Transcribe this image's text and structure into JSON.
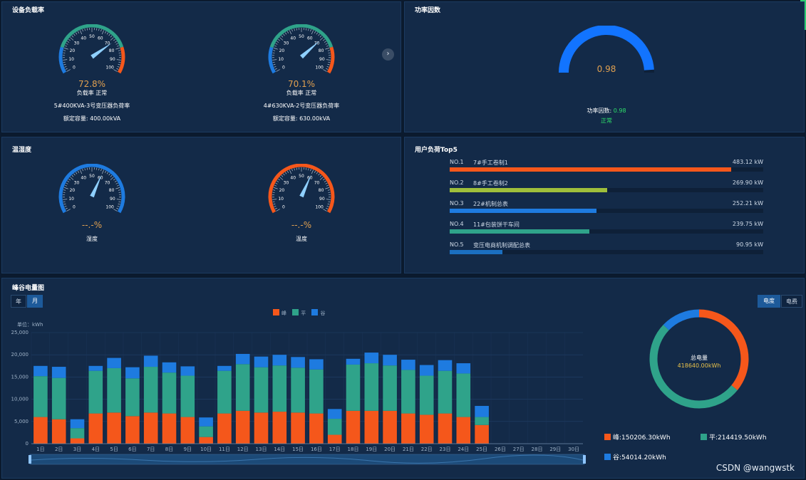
{
  "panels": {
    "load_rate": {
      "title": "设备负载率"
    },
    "power_factor": {
      "title": "功率因数"
    },
    "temp_humidity": {
      "title": "温湿度"
    },
    "top5": {
      "title": "用户负荷Top5"
    },
    "peak_valley": {
      "title": "峰谷电量图"
    }
  },
  "load_gauges": [
    {
      "value_text": "72.8%",
      "value": 72.8,
      "status": "负载率 正常",
      "name": "5#400KVA-3号变压器负荷率",
      "capacity": "额定容量: 400.00kVA"
    },
    {
      "value_text": "70.1%",
      "value": 70.1,
      "status": "负载率 正常",
      "name": "4#630KVA-2号变压器负荷率",
      "capacity": "额定容量: 630.00kVA"
    }
  ],
  "gauge_ticks": [
    "0",
    "10",
    "20",
    "30",
    "40",
    "50",
    "60",
    "70",
    "80",
    "90",
    "100"
  ],
  "power_factor": {
    "value_text": "0.98",
    "label": "功率因数: ",
    "value": "0.98",
    "status": "正常",
    "level": 0.98
  },
  "th_gauges": [
    {
      "value_text": "--.-%",
      "value": 60,
      "label": "湿度",
      "color": "#1e7be0"
    },
    {
      "value_text": "--.-%",
      "value": 60,
      "label": "温度",
      "color": "#f5571b"
    }
  ],
  "top5": [
    {
      "no": "NO.1",
      "name": "7#手工卷制1",
      "value": "483.12 kW",
      "level": 483.12,
      "color": "#f5571b"
    },
    {
      "no": "NO.2",
      "name": "8#手工卷制2",
      "value": "269.90 kW",
      "level": 269.9,
      "color": "#9fbf3b"
    },
    {
      "no": "NO.3",
      "name": "22#机制总表",
      "value": "252.21 kW",
      "level": 252.21,
      "color": "#1e7be0"
    },
    {
      "no": "NO.4",
      "name": "11#包装饼干车间",
      "value": "239.75 kW",
      "level": 239.75,
      "color": "#2fa38a"
    },
    {
      "no": "NO.5",
      "name": "变压电商机制调配总表",
      "value": "90.95 kW",
      "level": 90.95,
      "color": "#1b6fc0"
    }
  ],
  "peak_valley": {
    "btn_year": "年",
    "btn_month": "月",
    "btn_energy": "电度",
    "btn_cost": "电费",
    "unit_label": "单位：kWh",
    "legend": [
      "峰",
      "平",
      "谷"
    ],
    "colors": {
      "peak": "#f5571b",
      "flat": "#2fa38a",
      "valley": "#1e7be0"
    },
    "donut": {
      "title": "总电量",
      "value": "418640.00kWh",
      "peak_frac": 0.359,
      "flat_frac": 0.512,
      "valley_frac": 0.129
    },
    "donut_legend": [
      "峰:150206.30kWh",
      "平:214419.50kWh",
      "谷:54014.20kWh"
    ]
  },
  "chart_data": {
    "type": "bar",
    "stacked": true,
    "categories": [
      "1日",
      "2日",
      "3日",
      "4日",
      "5日",
      "6日",
      "7日",
      "8日",
      "9日",
      "10日",
      "11日",
      "12日",
      "13日",
      "14日",
      "15日",
      "16日",
      "17日",
      "18日",
      "19日",
      "20日",
      "21日",
      "22日",
      "23日",
      "24日",
      "25日",
      "26日",
      "27日",
      "28日",
      "29日",
      "30日"
    ],
    "series": [
      {
        "name": "峰",
        "values": [
          6000,
          5500,
          1200,
          6800,
          7000,
          6200,
          7000,
          6800,
          6000,
          1500,
          6800,
          7400,
          7000,
          7200,
          7000,
          6800,
          2000,
          7400,
          7400,
          7400,
          6800,
          6500,
          6800,
          6000,
          4200,
          0,
          0,
          0,
          0,
          0
        ]
      },
      {
        "name": "平",
        "values": [
          9200,
          9300,
          2300,
          9600,
          10000,
          8500,
          10300,
          9200,
          9300,
          2400,
          9600,
          10500,
          10200,
          10400,
          10100,
          9900,
          3600,
          10400,
          10700,
          10200,
          9800,
          8800,
          9600,
          9800,
          1800,
          0,
          0,
          0,
          0,
          0
        ]
      },
      {
        "name": "谷",
        "values": [
          2300,
          2500,
          2000,
          1100,
          2300,
          2500,
          2500,
          2300,
          2100,
          2000,
          1100,
          2300,
          2400,
          2400,
          2400,
          2300,
          2200,
          1300,
          2400,
          2400,
          2300,
          2400,
          2400,
          2300,
          2500,
          0,
          0,
          0,
          0,
          0
        ]
      }
    ],
    "yticks": [
      "0",
      "5,000",
      "10,000",
      "15,000",
      "20,000",
      "25,000"
    ],
    "ylim": [
      0,
      25000
    ],
    "ylabel": "单位：kWh"
  },
  "watermark": "CSDN @wangwstk"
}
